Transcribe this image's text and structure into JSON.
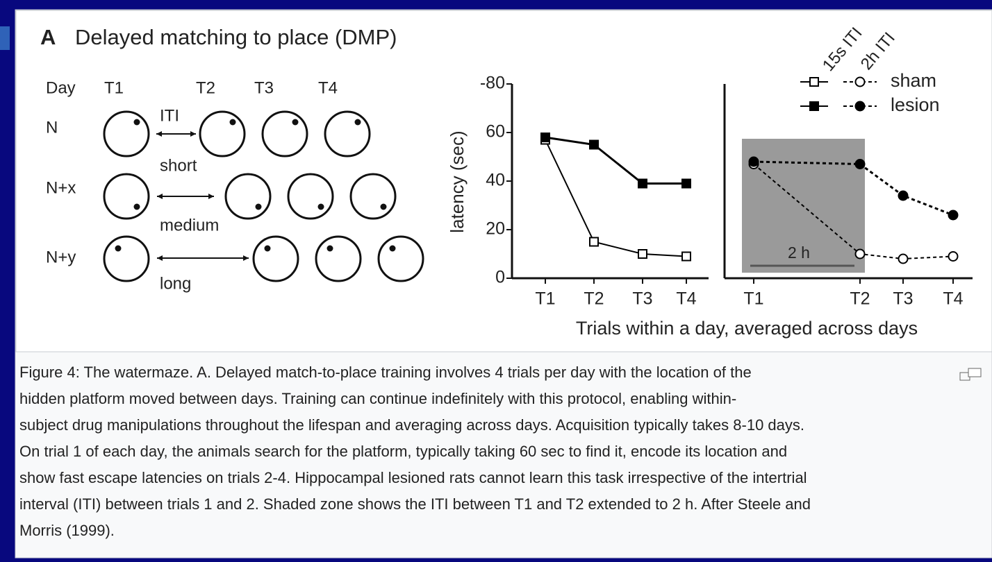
{
  "figure": {
    "panel_label": "A",
    "title": "Delayed matching to place (DMP)"
  },
  "diagram": {
    "headers": [
      "Day",
      "T1",
      "T2",
      "T3",
      "T4"
    ],
    "iti_label": "ITI",
    "rows": [
      {
        "label": "N",
        "interval": "short"
      },
      {
        "label": "N+x",
        "interval": "medium"
      },
      {
        "label": "N+y",
        "interval": "long"
      }
    ]
  },
  "legend": {
    "columns": [
      "15s ITI",
      "2h ITI"
    ]
  },
  "shared_x_label": "Trials within a day, averaged across days",
  "chart_data": [
    {
      "type": "line",
      "y_label": "latency (sec)",
      "categories": [
        "T1",
        "T2",
        "T3",
        "T4"
      ],
      "ylim": [
        0,
        80
      ],
      "yticks": [
        0,
        20,
        40,
        60,
        {
          "value": 80,
          "label": "-80"
        }
      ],
      "series": [
        {
          "color": "#000000",
          "marker": "square",
          "filled": false,
          "dashed": false,
          "values": [
            57,
            15,
            10,
            9
          ]
        },
        {
          "color": "#000000",
          "marker": "square",
          "filled": true,
          "dashed": false,
          "values": [
            58,
            55,
            39,
            39
          ]
        }
      ]
    },
    {
      "type": "line",
      "categories": [
        "T1",
        "T2",
        "T3",
        "T4"
      ],
      "ylim": [
        0,
        80
      ],
      "annotation": "2 h",
      "series": [
        {
          "name": "sham",
          "color": "#000000",
          "marker": "circle",
          "filled": false,
          "dashed": true,
          "values": [
            47,
            10,
            8,
            9
          ]
        },
        {
          "name": "lesion",
          "color": "#000000",
          "marker": "circle",
          "filled": true,
          "dashed": true,
          "values": [
            48,
            47,
            34,
            26
          ]
        }
      ]
    }
  ],
  "caption": {
    "lines": [
      "Figure 4: The watermaze. A. Delayed match-to-place training involves 4 trials per day with the location of the",
      "hidden platform moved between days. Training can continue indefinitely with this protocol, enabling within-",
      "subject drug manipulations throughout the lifespan and averaging across days. Acquisition typically takes 8-10 days.",
      "On trial 1 of each day, the animals search for the platform, typically taking 60 sec to find it, encode its location and",
      "show fast escape latencies on trials 2-4. Hippocampal lesioned rats cannot learn this task irrespective of the intertrial",
      "interval (ITI) between trials 1 and 2. Shaded zone shows the ITI between T1 and T2 extended to 2 h. After Steele and",
      "Morris (1999)."
    ]
  }
}
